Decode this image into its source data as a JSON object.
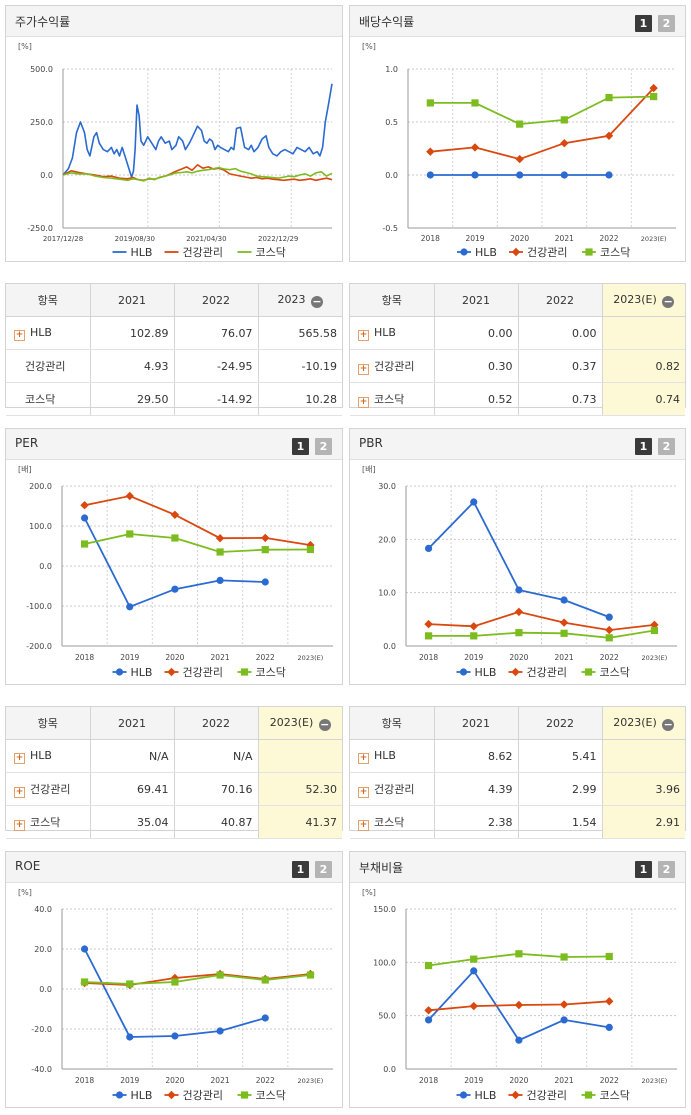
{
  "chart_data": [
    {
      "id": "stock-return",
      "type": "line",
      "title": "주가수익률",
      "unit": "[%]",
      "y_ticks": [
        "500.0",
        "250.0",
        "0.0",
        "-250.0"
      ],
      "ylim": [
        -250,
        500
      ],
      "x_ticks": [
        "2017/12/28",
        "2019/08/30",
        "2021/04/30",
        "2022/12/29"
      ],
      "x_tick_pos": [
        0,
        0.267,
        0.533,
        0.8
      ],
      "legend": [
        "HLB",
        "건강관리",
        "코스닥"
      ],
      "series": [
        {
          "name": "HLB",
          "color": "#2a6ad1",
          "x": [
            0,
            0.02,
            0.035,
            0.05,
            0.065,
            0.08,
            0.09,
            0.1,
            0.115,
            0.125,
            0.135,
            0.15,
            0.165,
            0.18,
            0.19,
            0.2,
            0.21,
            0.22,
            0.23,
            0.245,
            0.255,
            0.262,
            0.268,
            0.275,
            0.283,
            0.29,
            0.3,
            0.315,
            0.33,
            0.345,
            0.355,
            0.365,
            0.38,
            0.395,
            0.405,
            0.42,
            0.43,
            0.445,
            0.455,
            0.47,
            0.485,
            0.5,
            0.515,
            0.525,
            0.535,
            0.545,
            0.555,
            0.565,
            0.575,
            0.585,
            0.6,
            0.615,
            0.625,
            0.635,
            0.645,
            0.66,
            0.675,
            0.69,
            0.7,
            0.71,
            0.725,
            0.74,
            0.755,
            0.765,
            0.78,
            0.795,
            0.81,
            0.825,
            0.84,
            0.855,
            0.87,
            0.885,
            0.9,
            0.915,
            0.93,
            0.945,
            0.955,
            0.965,
            0.975,
            0.985,
            1.0
          ],
          "values": [
            0,
            30,
            80,
            200,
            250,
            200,
            120,
            90,
            180,
            200,
            150,
            120,
            110,
            130,
            100,
            120,
            90,
            130,
            90,
            30,
            -10,
            20,
            120,
            330,
            280,
            160,
            140,
            180,
            150,
            120,
            160,
            180,
            150,
            160,
            120,
            140,
            180,
            160,
            120,
            150,
            190,
            230,
            210,
            160,
            150,
            170,
            160,
            120,
            140,
            130,
            120,
            110,
            130,
            120,
            220,
            225,
            130,
            120,
            140,
            110,
            130,
            170,
            185,
            130,
            100,
            90,
            110,
            120,
            110,
            100,
            130,
            120,
            110,
            130,
            100,
            110,
            90,
            130,
            250,
            320,
            430
          ]
        },
        {
          "name": "건강관리",
          "color": "#d9480f",
          "x": [
            0,
            0.03,
            0.06,
            0.09,
            0.12,
            0.15,
            0.18,
            0.21,
            0.24,
            0.26,
            0.28,
            0.3,
            0.32,
            0.34,
            0.36,
            0.38,
            0.4,
            0.42,
            0.44,
            0.46,
            0.48,
            0.5,
            0.52,
            0.54,
            0.56,
            0.58,
            0.6,
            0.62,
            0.64,
            0.66,
            0.68,
            0.7,
            0.72,
            0.74,
            0.76,
            0.78,
            0.8,
            0.82,
            0.84,
            0.86,
            0.88,
            0.9,
            0.92,
            0.94,
            0.96,
            0.98,
            1.0
          ],
          "values": [
            0,
            20,
            12,
            5,
            0,
            -8,
            -5,
            -15,
            -18,
            -12,
            -22,
            -25,
            -18,
            -20,
            -12,
            -5,
            5,
            18,
            28,
            38,
            22,
            48,
            32,
            38,
            28,
            32,
            22,
            5,
            0,
            -5,
            -10,
            -15,
            -12,
            -18,
            -15,
            -20,
            -22,
            -25,
            -22,
            -20,
            -25,
            -22,
            -18,
            -25,
            -20,
            -15,
            -22
          ]
        },
        {
          "name": "코스닥",
          "color": "#7cbc1f",
          "x": [
            0,
            0.03,
            0.06,
            0.09,
            0.12,
            0.15,
            0.18,
            0.21,
            0.24,
            0.26,
            0.28,
            0.3,
            0.32,
            0.34,
            0.36,
            0.38,
            0.4,
            0.42,
            0.44,
            0.46,
            0.48,
            0.5,
            0.52,
            0.54,
            0.56,
            0.58,
            0.6,
            0.62,
            0.64,
            0.66,
            0.68,
            0.7,
            0.72,
            0.74,
            0.76,
            0.78,
            0.8,
            0.82,
            0.84,
            0.86,
            0.88,
            0.9,
            0.92,
            0.94,
            0.96,
            0.98,
            1.0
          ],
          "values": [
            0,
            10,
            5,
            5,
            -5,
            -12,
            -15,
            -20,
            -25,
            -18,
            -22,
            -28,
            -15,
            -22,
            -10,
            -5,
            2,
            10,
            12,
            15,
            10,
            18,
            22,
            25,
            30,
            35,
            28,
            25,
            30,
            18,
            12,
            5,
            -5,
            -8,
            -10,
            -12,
            -15,
            -10,
            -5,
            -8,
            0,
            5,
            -5,
            10,
            15,
            -5,
            8
          ]
        }
      ]
    },
    {
      "id": "dividend-yield",
      "type": "line",
      "title": "배당수익률",
      "unit": "[%]",
      "y_ticks": [
        "1.0",
        "0.5",
        "0.0",
        "-0.5"
      ],
      "ylim": [
        -0.5,
        1.0
      ],
      "categories": [
        "2018",
        "2019",
        "2020",
        "2021",
        "2022",
        "2023(E)"
      ],
      "legend": [
        "HLB",
        "건강관리",
        "코스닥"
      ],
      "series": [
        {
          "name": "HLB",
          "color": "#2a6ad1",
          "marker": "circle",
          "values": [
            0.0,
            0.0,
            0.0,
            0.0,
            0.0,
            null
          ]
        },
        {
          "name": "건강관리",
          "color": "#d9480f",
          "marker": "diamond",
          "values": [
            0.22,
            0.26,
            0.15,
            0.3,
            0.37,
            0.82
          ]
        },
        {
          "name": "코스닥",
          "color": "#7cbc1f",
          "marker": "square",
          "values": [
            0.68,
            0.68,
            0.48,
            0.52,
            0.73,
            0.74
          ]
        }
      ]
    },
    {
      "id": "per",
      "type": "line",
      "title": "PER",
      "unit": "[배]",
      "y_ticks": [
        "200.0",
        "100.0",
        "0.0",
        "-100.0",
        "-200.0"
      ],
      "ylim": [
        -200,
        200
      ],
      "categories": [
        "2018",
        "2019",
        "2020",
        "2021",
        "2022",
        "2023(E)"
      ],
      "legend": [
        "HLB",
        "건강관리",
        "코스닥"
      ],
      "series": [
        {
          "name": "HLB",
          "color": "#2a6ad1",
          "marker": "circle",
          "values": [
            120,
            -102,
            -58,
            -36,
            -40,
            null
          ]
        },
        {
          "name": "건강관리",
          "color": "#d9480f",
          "marker": "diamond",
          "values": [
            152,
            175,
            128,
            69.41,
            70.16,
            52.3
          ]
        },
        {
          "name": "코스닥",
          "color": "#7cbc1f",
          "marker": "square",
          "values": [
            55,
            80,
            70,
            35.04,
            40.87,
            41.37
          ]
        }
      ]
    },
    {
      "id": "pbr",
      "type": "line",
      "title": "PBR",
      "unit": "[배]",
      "y_ticks": [
        "30.0",
        "20.0",
        "10.0",
        "0.0"
      ],
      "ylim": [
        0,
        30
      ],
      "categories": [
        "2018",
        "2019",
        "2020",
        "2021",
        "2022",
        "2023(E)"
      ],
      "legend": [
        "HLB",
        "건강관리",
        "코스닥"
      ],
      "series": [
        {
          "name": "HLB",
          "color": "#2a6ad1",
          "marker": "circle",
          "values": [
            18.3,
            27,
            10.5,
            8.62,
            5.41,
            null
          ]
        },
        {
          "name": "건강관리",
          "color": "#d9480f",
          "marker": "diamond",
          "values": [
            4.1,
            3.7,
            6.4,
            4.39,
            2.99,
            3.96
          ]
        },
        {
          "name": "코스닥",
          "color": "#7cbc1f",
          "marker": "square",
          "values": [
            1.9,
            1.9,
            2.5,
            2.38,
            1.54,
            2.91
          ]
        }
      ]
    },
    {
      "id": "roe",
      "type": "line",
      "title": "ROE",
      "unit": "[%]",
      "y_ticks": [
        "40.0",
        "20.0",
        "0.0",
        "-20.0",
        "-40.0"
      ],
      "ylim": [
        -40,
        40
      ],
      "categories": [
        "2018",
        "2019",
        "2020",
        "2021",
        "2022",
        "2023(E)"
      ],
      "legend": [
        "HLB",
        "건강관리",
        "코스닥"
      ],
      "series": [
        {
          "name": "HLB",
          "color": "#2a6ad1",
          "marker": "circle",
          "values": [
            20,
            -24,
            -23.5,
            -21,
            -14.5,
            null
          ]
        },
        {
          "name": "건강관리",
          "color": "#d9480f",
          "marker": "diamond",
          "values": [
            3.0,
            2.0,
            5.5,
            7.5,
            5.0,
            7.5
          ]
        },
        {
          "name": "코스닥",
          "color": "#7cbc1f",
          "marker": "square",
          "values": [
            3.5,
            2.5,
            3.5,
            7.0,
            4.5,
            7.0
          ]
        }
      ]
    },
    {
      "id": "debt-ratio",
      "type": "line",
      "title": "부채비율",
      "unit": "[%]",
      "y_ticks": [
        "150.0",
        "100.0",
        "50.0",
        "0.0"
      ],
      "ylim": [
        0,
        150
      ],
      "categories": [
        "2018",
        "2019",
        "2020",
        "2021",
        "2022",
        "2023(E)"
      ],
      "legend": [
        "HLB",
        "건강관리",
        "코스닥"
      ],
      "series": [
        {
          "name": "HLB",
          "color": "#2a6ad1",
          "marker": "circle",
          "values": [
            46,
            92,
            27,
            46,
            39,
            null
          ]
        },
        {
          "name": "건강관리",
          "color": "#d9480f",
          "marker": "diamond",
          "values": [
            55,
            59,
            60,
            60.5,
            63.5,
            null
          ]
        },
        {
          "name": "코스닥",
          "color": "#7cbc1f",
          "marker": "square",
          "values": [
            97,
            103,
            108,
            105,
            105.5,
            null
          ]
        }
      ]
    }
  ],
  "buttons": {
    "one": "1",
    "two": "2"
  },
  "tables": {
    "stock": {
      "header": [
        "항목",
        "2021",
        "2022",
        "2023"
      ],
      "rows": [
        {
          "label": "HLB",
          "plus": true,
          "cells": [
            "102.89",
            "76.07",
            "565.58"
          ]
        },
        {
          "label": "건강관리",
          "plus": false,
          "cells": [
            "4.93",
            "-24.95",
            "-10.19"
          ]
        },
        {
          "label": "코스닥",
          "plus": false,
          "cells": [
            "29.50",
            "-14.92",
            "10.28"
          ]
        }
      ]
    },
    "dividend": {
      "header": [
        "항목",
        "2021",
        "2022",
        "2023(E)"
      ],
      "rows": [
        {
          "label": "HLB",
          "plus": true,
          "cells": [
            "0.00",
            "0.00",
            ""
          ]
        },
        {
          "label": "건강관리",
          "plus": true,
          "cells": [
            "0.30",
            "0.37",
            "0.82"
          ]
        },
        {
          "label": "코스닥",
          "plus": true,
          "cells": [
            "0.52",
            "0.73",
            "0.74"
          ]
        }
      ]
    },
    "per": {
      "header": [
        "항목",
        "2021",
        "2022",
        "2023(E)"
      ],
      "rows": [
        {
          "label": "HLB",
          "plus": true,
          "cells": [
            "N/A",
            "N/A",
            ""
          ]
        },
        {
          "label": "건강관리",
          "plus": true,
          "cells": [
            "69.41",
            "70.16",
            "52.30"
          ]
        },
        {
          "label": "코스닥",
          "plus": true,
          "cells": [
            "35.04",
            "40.87",
            "41.37"
          ]
        }
      ]
    },
    "pbr": {
      "header": [
        "항목",
        "2021",
        "2022",
        "2023(E)"
      ],
      "rows": [
        {
          "label": "HLB",
          "plus": true,
          "cells": [
            "8.62",
            "5.41",
            ""
          ]
        },
        {
          "label": "건강관리",
          "plus": true,
          "cells": [
            "4.39",
            "2.99",
            "3.96"
          ]
        },
        {
          "label": "코스닥",
          "plus": true,
          "cells": [
            "2.38",
            "1.54",
            "2.91"
          ]
        }
      ]
    }
  }
}
